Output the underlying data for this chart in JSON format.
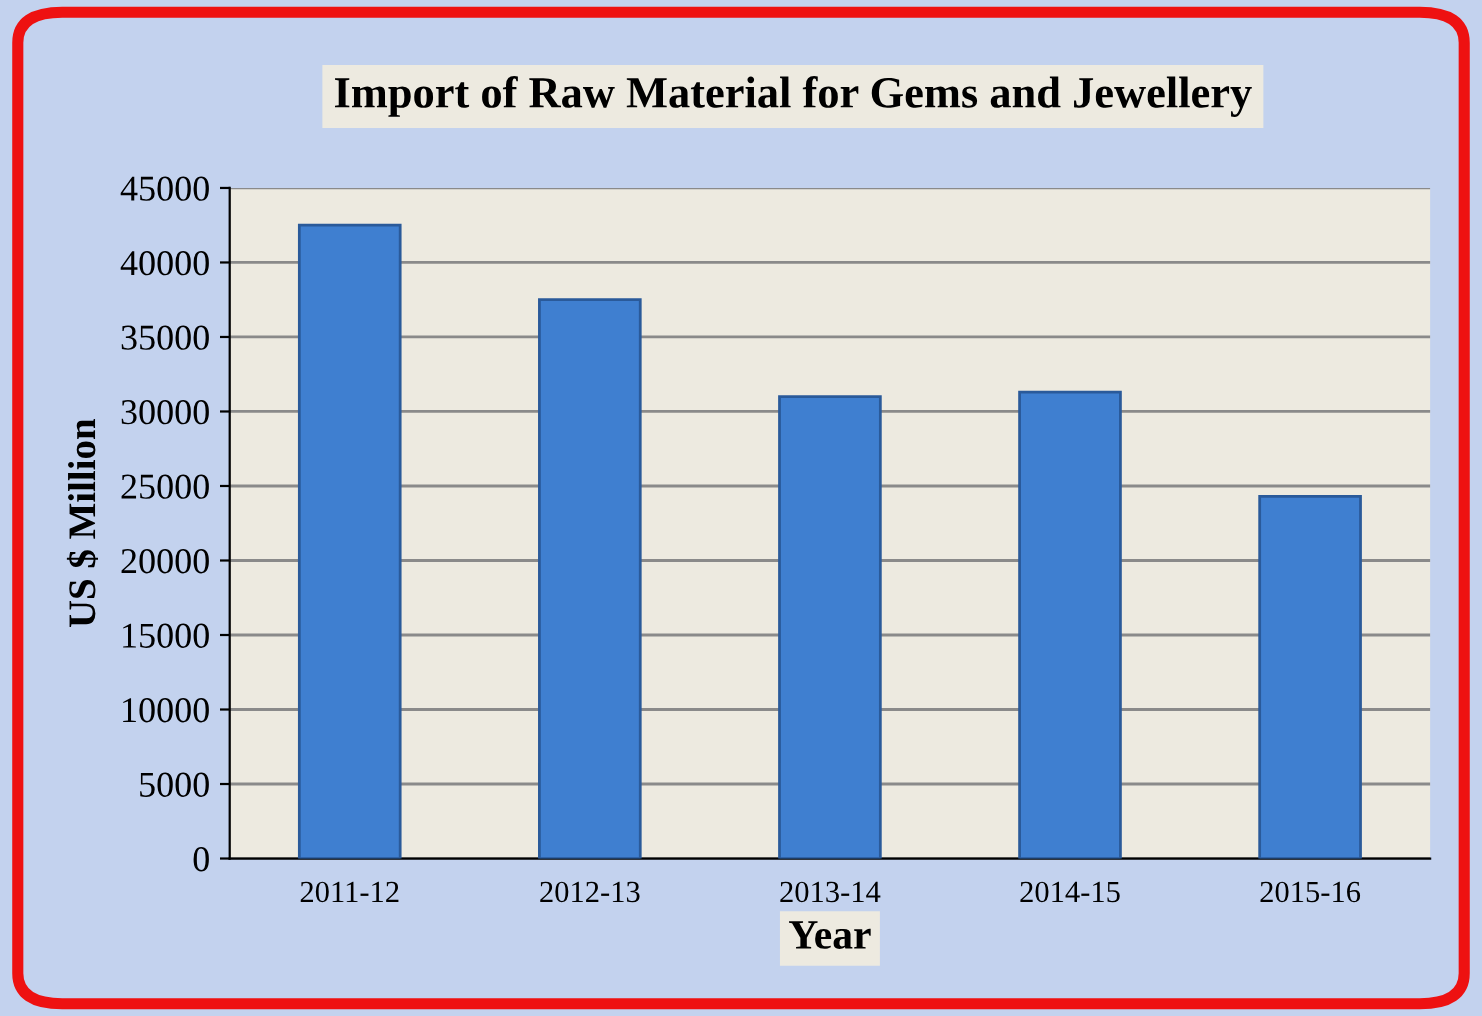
{
  "chart_data": {
    "type": "bar",
    "title": "Import of Raw Material for Gems and Jewellery",
    "xlabel": "Year",
    "ylabel": "US $ Million",
    "categories": [
      "2011-12",
      "2012-13",
      "2013-14",
      "2014-15",
      "2015-16"
    ],
    "values": [
      42500,
      37500,
      31000,
      31300,
      24300
    ],
    "color": "#3f7fd0",
    "ylim": [
      0,
      45000
    ],
    "yticks": [
      0,
      5000,
      10000,
      15000,
      20000,
      25000,
      30000,
      35000,
      40000,
      45000
    ],
    "grid": "y"
  }
}
